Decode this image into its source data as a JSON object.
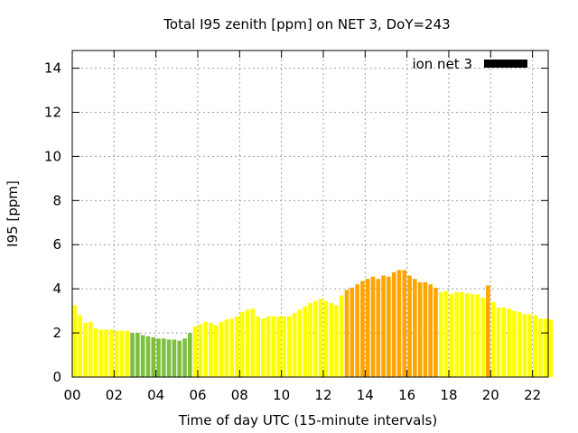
{
  "chart_data": {
    "type": "bar",
    "title": "Total I95 zenith [ppm] on NET 3, DoY=243",
    "xlabel": "Time of day UTC (15-minute intervals)",
    "ylabel": "I95 [ppm]",
    "xlim": [
      0,
      22.75
    ],
    "ylim": [
      0,
      14.8
    ],
    "grid": true,
    "legend": {
      "position": "top-right",
      "label": "ion net 3",
      "color": "#000000"
    },
    "xticks": [
      "00",
      "02",
      "04",
      "06",
      "08",
      "10",
      "12",
      "14",
      "16",
      "18",
      "20",
      "22"
    ],
    "yticks": [
      "0",
      "2",
      "4",
      "6",
      "8",
      "10",
      "12",
      "14"
    ],
    "interval_hours": 0.25,
    "colors": {
      "yellow": "#ffff00",
      "green": "#7fbf3f",
      "orange": "#ffa500"
    },
    "values": [
      3.25,
      2.8,
      2.45,
      2.5,
      2.2,
      2.15,
      2.15,
      2.15,
      2.1,
      2.1,
      2.1,
      2.0,
      2.0,
      1.9,
      1.85,
      1.8,
      1.75,
      1.75,
      1.7,
      1.7,
      1.65,
      1.75,
      2.0,
      2.3,
      2.4,
      2.5,
      2.45,
      2.35,
      2.5,
      2.6,
      2.65,
      2.75,
      2.95,
      3.05,
      3.1,
      2.75,
      2.65,
      2.75,
      2.75,
      2.75,
      2.75,
      2.75,
      2.9,
      3.05,
      3.2,
      3.35,
      3.45,
      3.55,
      3.45,
      3.35,
      3.25,
      3.7,
      3.95,
      4.05,
      4.2,
      4.35,
      4.45,
      4.55,
      4.45,
      4.6,
      4.55,
      4.75,
      4.85,
      4.85,
      4.6,
      4.45,
      4.3,
      4.3,
      4.2,
      4.05,
      3.85,
      3.9,
      3.75,
      3.85,
      3.85,
      3.8,
      3.75,
      3.75,
      3.6,
      4.15,
      3.4,
      3.15,
      3.15,
      3.1,
      3.0,
      2.95,
      2.85,
      2.85,
      2.8,
      2.65,
      2.65,
      2.6
    ],
    "bar_colors": [
      "yellow",
      "yellow",
      "yellow",
      "yellow",
      "yellow",
      "yellow",
      "yellow",
      "yellow",
      "yellow",
      "yellow",
      "yellow",
      "green",
      "green",
      "green",
      "green",
      "green",
      "green",
      "green",
      "green",
      "green",
      "green",
      "green",
      "green",
      "yellow",
      "yellow",
      "yellow",
      "yellow",
      "yellow",
      "yellow",
      "yellow",
      "yellow",
      "yellow",
      "yellow",
      "yellow",
      "yellow",
      "yellow",
      "yellow",
      "yellow",
      "yellow",
      "yellow",
      "yellow",
      "yellow",
      "yellow",
      "yellow",
      "yellow",
      "yellow",
      "yellow",
      "yellow",
      "yellow",
      "yellow",
      "yellow",
      "yellow",
      "orange",
      "orange",
      "orange",
      "orange",
      "orange",
      "orange",
      "orange",
      "orange",
      "orange",
      "orange",
      "orange",
      "orange",
      "orange",
      "orange",
      "orange",
      "orange",
      "orange",
      "orange",
      "yellow",
      "yellow",
      "yellow",
      "yellow",
      "yellow",
      "yellow",
      "yellow",
      "yellow",
      "yellow",
      "orange",
      "yellow",
      "yellow",
      "yellow",
      "yellow",
      "yellow",
      "yellow",
      "yellow",
      "yellow",
      "yellow",
      "yellow",
      "yellow",
      "yellow"
    ]
  }
}
